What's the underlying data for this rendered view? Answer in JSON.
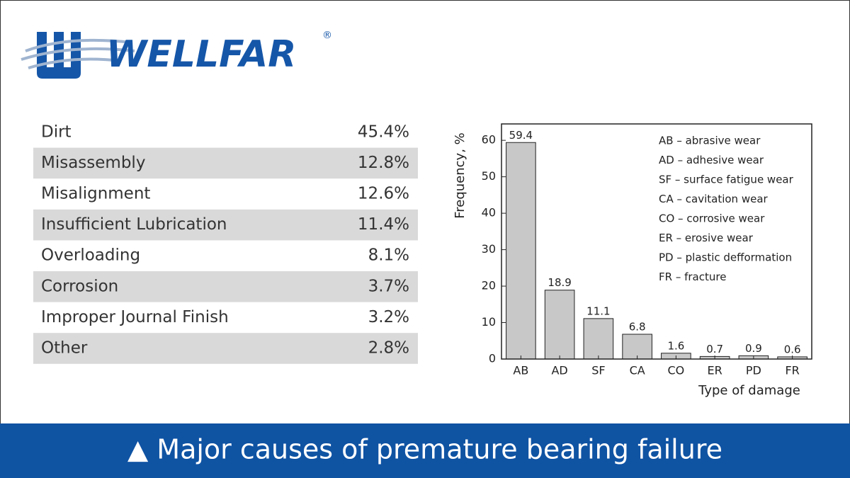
{
  "logo": {
    "text": "WELLFAR",
    "mark": "®"
  },
  "table": {
    "rows": [
      [
        "Dirt",
        "45.4%"
      ],
      [
        "Misassembly",
        "12.8%"
      ],
      [
        "Misalignment",
        "12.6%"
      ],
      [
        "Insufficient Lubrication",
        "11.4%"
      ],
      [
        "Overloading",
        "8.1%"
      ],
      [
        "Corrosion",
        "3.7%"
      ],
      [
        "Improper Journal Finish",
        "3.2%"
      ],
      [
        "Other",
        "2.8%"
      ]
    ]
  },
  "chart_data": {
    "type": "bar",
    "y_label": "Frequency, %",
    "x_label": "Type of damage",
    "categories": [
      "AB",
      "AD",
      "SF",
      "CA",
      "CO",
      "ER",
      "PD",
      "FR"
    ],
    "values": [
      59.4,
      18.9,
      11.1,
      6.8,
      1.6,
      0.7,
      0.9,
      0.6
    ],
    "color": "#c8c8c8",
    "ylim": [
      0,
      64.5
    ],
    "yticks": [
      0,
      10,
      20,
      30,
      40,
      50,
      60
    ],
    "grid": false,
    "legend_notes": [
      "AB – abrasive wear",
      "AD – adhesive wear",
      "SF – surface fatigue wear",
      "CA – cavitation wear",
      "CO – corrosive wear",
      "ER – erosive wear",
      "PD – plastic defformation",
      "FR – fracture"
    ]
  },
  "caption": "▲ Major causes of premature bearing failure"
}
